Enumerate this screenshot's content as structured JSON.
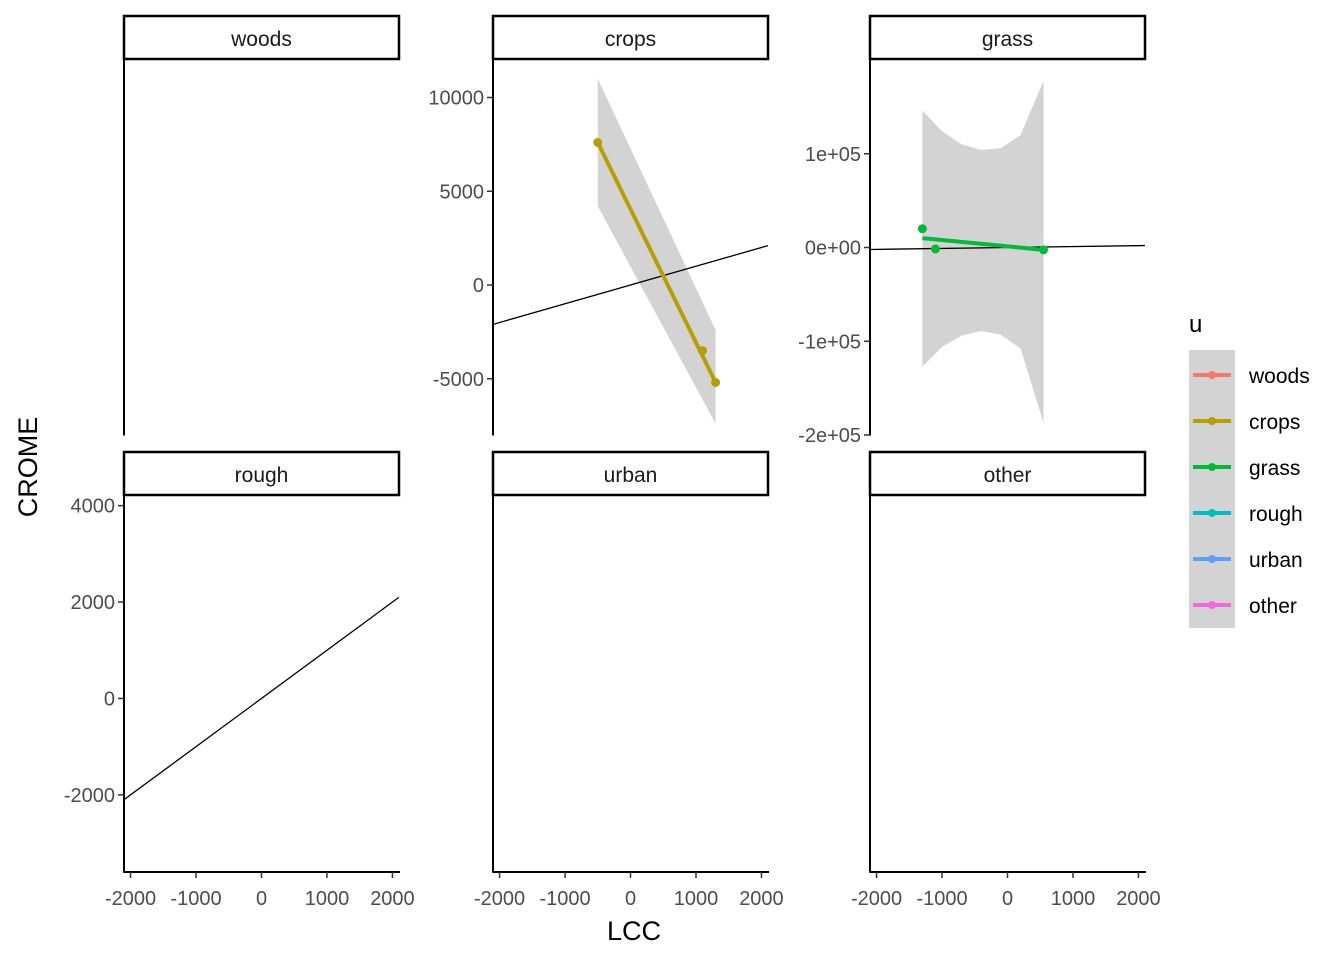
{
  "figure": {
    "x_axis_label": "LCC",
    "y_axis_label": "CROME",
    "legend_title": "u",
    "legend_items": [
      {
        "label": "woods",
        "color": "#F8766D"
      },
      {
        "label": "crops",
        "color": "#B79F00"
      },
      {
        "label": "grass",
        "color": "#00BA38"
      },
      {
        "label": "rough",
        "color": "#00BFC4"
      },
      {
        "label": "urban",
        "color": "#619CFF"
      },
      {
        "label": "other",
        "color": "#F564E3"
      }
    ],
    "ribbon_color": "#d3d3d3",
    "reference_line_color": "#000000"
  },
  "chart_data": [
    {
      "type": "line",
      "title": "woods",
      "xlim": [
        -2100,
        2100
      ],
      "x_ticks": [],
      "y_ticks": [],
      "series": []
    },
    {
      "type": "line",
      "title": "crops",
      "xlim": [
        -2100,
        2100
      ],
      "ylim": [
        -8000,
        12000
      ],
      "x_ticks": [],
      "y_ticks": [
        {
          "value": -5000,
          "label": "-5000"
        },
        {
          "value": 0,
          "label": "0"
        },
        {
          "value": 5000,
          "label": "5000"
        },
        {
          "value": 10000,
          "label": "10000"
        }
      ],
      "reference_line": {
        "x": [
          -2100,
          2100
        ],
        "y": [
          -2100,
          2100
        ]
      },
      "series": [
        {
          "color": "#B79F00",
          "points": [
            [
              -500,
              7600
            ],
            [
              1100,
              -3500
            ],
            [
              1300,
              -5200
            ]
          ],
          "fit": [
            [
              -500,
              7600
            ],
            [
              1300,
              -5200
            ]
          ],
          "ribbon_upper": [
            [
              -500,
              11000
            ],
            [
              1300,
              -2400
            ]
          ],
          "ribbon_lower": [
            [
              -500,
              4200
            ],
            [
              1300,
              -7400
            ]
          ]
        }
      ]
    },
    {
      "type": "line",
      "title": "grass",
      "xlim": [
        -2100,
        2100
      ],
      "ylim": [
        -200000,
        200000
      ],
      "x_ticks": [],
      "y_ticks": [
        {
          "value": -200000,
          "label": "-2e+05"
        },
        {
          "value": -100000,
          "label": "-1e+05"
        },
        {
          "value": 0,
          "label": "0e+00"
        },
        {
          "value": 100000,
          "label": "1e+05"
        }
      ],
      "reference_line": {
        "x": [
          -2100,
          2100
        ],
        "y": [
          -2100,
          2100
        ]
      },
      "series": [
        {
          "color": "#00BA38",
          "points": [
            [
              -1300,
              20000
            ],
            [
              -1100,
              -1500
            ],
            [
              550,
              -2500
            ]
          ],
          "fit": [
            [
              -1300,
              10000
            ],
            [
              550,
              -2500
            ]
          ],
          "ribbon_upper": [
            [
              -1300,
              146000
            ],
            [
              -1000,
              124000
            ],
            [
              -700,
              110000
            ],
            [
              -400,
              104000
            ],
            [
              -100,
              106000
            ],
            [
              200,
              120000
            ],
            [
              550,
              178000
            ]
          ],
          "ribbon_lower": [
            [
              -1300,
              -127000
            ],
            [
              -1000,
              -106000
            ],
            [
              -700,
              -94000
            ],
            [
              -400,
              -89000
            ],
            [
              -100,
              -93000
            ],
            [
              200,
              -108000
            ],
            [
              550,
              -187000
            ]
          ]
        }
      ]
    },
    {
      "type": "line",
      "title": "rough",
      "xlim": [
        -2100,
        2100
      ],
      "ylim": [
        -3600,
        4200
      ],
      "x_ticks": [
        {
          "value": -2000,
          "label": "-2000"
        },
        {
          "value": -1000,
          "label": "-1000"
        },
        {
          "value": 0,
          "label": "0"
        },
        {
          "value": 1000,
          "label": "1000"
        },
        {
          "value": 2000,
          "label": "2000"
        }
      ],
      "y_ticks": [
        {
          "value": -2000,
          "label": "-2000"
        },
        {
          "value": 0,
          "label": "0"
        },
        {
          "value": 2000,
          "label": "2000"
        },
        {
          "value": 4000,
          "label": "4000"
        }
      ],
      "reference_line": {
        "x": [
          -2100,
          2100
        ],
        "y": [
          -2100,
          2100
        ]
      },
      "series": []
    },
    {
      "type": "line",
      "title": "urban",
      "xlim": [
        -2100,
        2100
      ],
      "x_ticks": [
        {
          "value": -2000,
          "label": "-2000"
        },
        {
          "value": -1000,
          "label": "-1000"
        },
        {
          "value": 0,
          "label": "0"
        },
        {
          "value": 1000,
          "label": "1000"
        },
        {
          "value": 2000,
          "label": "2000"
        }
      ],
      "y_ticks": [],
      "series": []
    },
    {
      "type": "line",
      "title": "other",
      "xlim": [
        -2100,
        2100
      ],
      "x_ticks": [
        {
          "value": -2000,
          "label": "-2000"
        },
        {
          "value": -1000,
          "label": "-1000"
        },
        {
          "value": 0,
          "label": "0"
        },
        {
          "value": 1000,
          "label": "1000"
        },
        {
          "value": 2000,
          "label": "2000"
        }
      ],
      "y_ticks": [],
      "series": []
    }
  ]
}
